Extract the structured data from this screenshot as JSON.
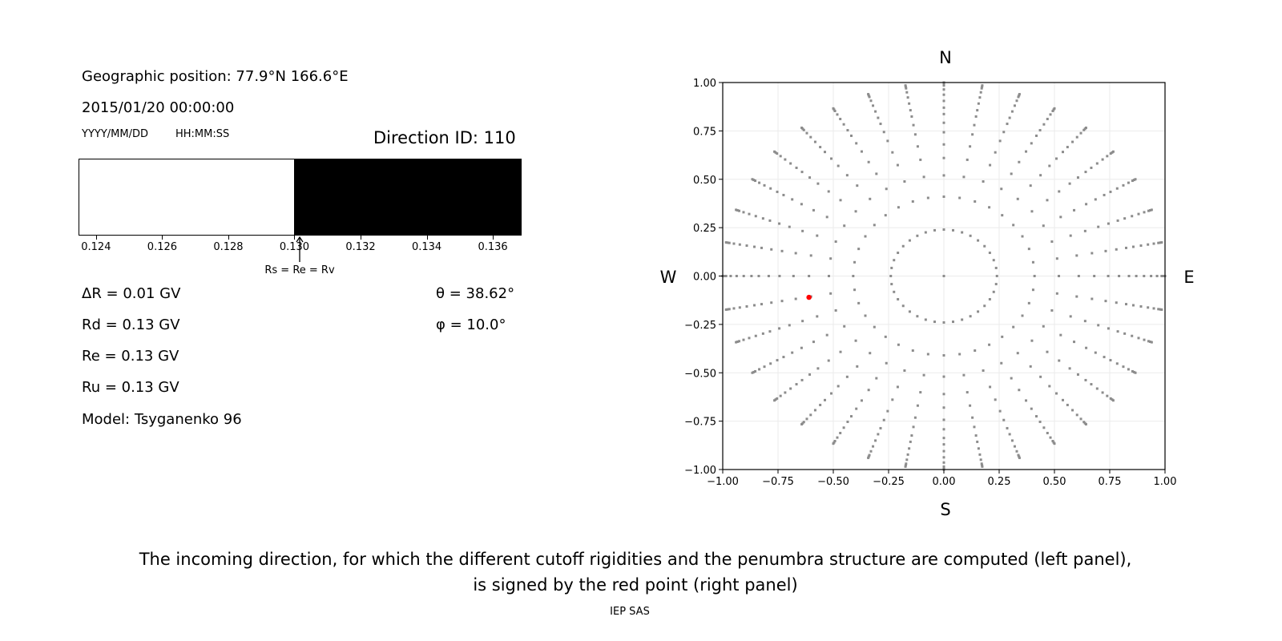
{
  "left_panel": {
    "position": "Geographic position: 77.9°N 166.6°E",
    "datetime": "2015/01/20 00:00:00",
    "date_format": "YYYY/MM/DD",
    "time_format": "HH:MM:SS",
    "direction": "Direction ID: 110",
    "colorbar": {
      "xlim": [
        0.12347,
        0.13687
      ],
      "split": 0.13,
      "left_color": "#ffffff",
      "right_color": "#000000",
      "ticks": [
        "0.124",
        "0.126",
        "0.128",
        "0.130",
        "0.132",
        "0.134",
        "0.136"
      ],
      "arrow_label": "Rs = Re = Rv"
    },
    "dR": "ΔR = 0.01 GV",
    "Rd": "Rd = 0.13 GV",
    "Re": "Re = 0.13 GV",
    "Ru": "Ru = 0.13 GV",
    "model": "Model: Tsyganenko 96",
    "theta": "θ = 38.62°",
    "phi": "φ = 10.0°"
  },
  "chart_data": {
    "type": "scatter",
    "xlim": [
      -1,
      1
    ],
    "ylim": [
      -1,
      1
    ],
    "grid": true,
    "xticks": [
      "−1.00",
      "−0.75",
      "−0.50",
      "−0.25",
      "0.00",
      "0.25",
      "0.50",
      "0.75",
      "1.00"
    ],
    "yticks": [
      "1.00",
      "0.75",
      "0.50",
      "0.25",
      "0.00",
      "−0.25",
      "−0.50",
      "−0.75",
      "−1.00"
    ],
    "compass": {
      "N": "N",
      "S": "S",
      "W": "W",
      "E": "E"
    },
    "grid_points": {
      "center": [
        0,
        0
      ],
      "ring_radii": [
        0.24,
        0.41,
        0.52,
        0.61,
        0.68,
        0.743,
        0.792,
        0.837,
        0.87,
        0.905,
        0.937,
        0.964,
        0.985,
        0.993,
        1.0
      ],
      "azimuth_step_deg": 10,
      "color": "#8c8c8c"
    },
    "selected_point": {
      "x": -0.61,
      "y": -0.11,
      "color": "#ff0000"
    }
  },
  "caption": {
    "line1": "The incoming direction, for which the different cutoff rigidities and the penumbra structure are computed (left panel),",
    "line2": "is signed by the red point (right panel)",
    "credit": "IEP SAS"
  }
}
